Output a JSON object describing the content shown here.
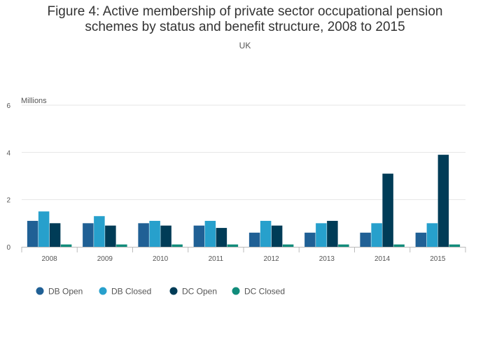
{
  "chart_data": {
    "type": "bar",
    "title": "Figure 4: Active membership of private sector occupational pension schemes by status and benefit structure, 2008 to 2015",
    "subtitle": "UK",
    "ylabel": "Millions",
    "ylim": [
      0,
      6
    ],
    "yticks": [
      0,
      2,
      4,
      6
    ],
    "grid": true,
    "legend_position": "bottom",
    "categories": [
      "2008",
      "2009",
      "2010",
      "2011",
      "2012",
      "2013",
      "2014",
      "2015"
    ],
    "series": [
      {
        "name": "DB Open",
        "color": "#206095",
        "values": [
          1.1,
          1.0,
          1.0,
          0.9,
          0.6,
          0.6,
          0.6,
          0.6
        ]
      },
      {
        "name": "DB Closed",
        "color": "#27a0cc",
        "values": [
          1.5,
          1.3,
          1.1,
          1.1,
          1.1,
          1.0,
          1.0,
          1.0
        ]
      },
      {
        "name": "DC Open",
        "color": "#003c57",
        "values": [
          1.0,
          0.9,
          0.9,
          0.8,
          0.9,
          1.1,
          3.1,
          3.9
        ]
      },
      {
        "name": "DC Closed",
        "color": "#118c7b",
        "values": [
          0.1,
          0.1,
          0.1,
          0.1,
          0.1,
          0.1,
          0.1,
          0.1
        ]
      }
    ]
  }
}
